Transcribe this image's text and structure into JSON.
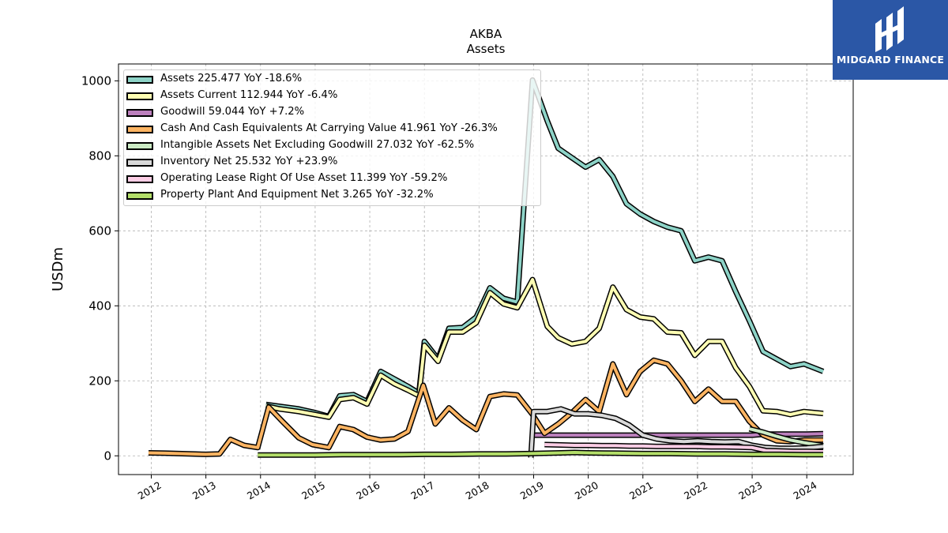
{
  "brand": {
    "name": "MIDGARD FINANCE"
  },
  "chart_data": {
    "type": "line",
    "title": "AKBA",
    "subtitle": "Assets",
    "ylabel": "USDm",
    "xlabel": "",
    "xlim": [
      2011.4,
      2024.85
    ],
    "ylim": [
      -50,
      1045
    ],
    "yticks": [
      0,
      200,
      400,
      600,
      800,
      1000
    ],
    "xticks": [
      "2012",
      "2013",
      "2014",
      "2015",
      "2016",
      "2017",
      "2018",
      "2019",
      "2020",
      "2021",
      "2022",
      "2023",
      "2024"
    ],
    "grid": true,
    "legend_position": "upper-left",
    "series": [
      {
        "name": "Assets",
        "legend": "Assets  225.477 YoY -18.6%",
        "color": "#8dd3c7",
        "points": [
          [
            2014.1,
            137
          ],
          [
            2014.35,
            132
          ],
          [
            2014.7,
            125
          ],
          [
            2015.0,
            115
          ],
          [
            2015.25,
            105
          ],
          [
            2015.45,
            160
          ],
          [
            2015.7,
            163
          ],
          [
            2015.95,
            145
          ],
          [
            2016.2,
            225
          ],
          [
            2016.45,
            205
          ],
          [
            2016.7,
            185
          ],
          [
            2016.9,
            167
          ],
          [
            2017.0,
            305
          ],
          [
            2017.25,
            258
          ],
          [
            2017.45,
            340
          ],
          [
            2017.7,
            342
          ],
          [
            2017.95,
            370
          ],
          [
            2018.2,
            448
          ],
          [
            2018.45,
            420
          ],
          [
            2018.7,
            410
          ],
          [
            2018.98,
            1002
          ],
          [
            2019.25,
            893
          ],
          [
            2019.45,
            820
          ],
          [
            2019.7,
            795
          ],
          [
            2019.95,
            770
          ],
          [
            2020.2,
            790
          ],
          [
            2020.45,
            745
          ],
          [
            2020.7,
            672
          ],
          [
            2020.95,
            645
          ],
          [
            2021.2,
            625
          ],
          [
            2021.45,
            610
          ],
          [
            2021.7,
            600
          ],
          [
            2021.95,
            520
          ],
          [
            2022.2,
            530
          ],
          [
            2022.45,
            520
          ],
          [
            2022.7,
            438
          ],
          [
            2022.95,
            360
          ],
          [
            2023.2,
            278
          ],
          [
            2023.45,
            258
          ],
          [
            2023.7,
            238
          ],
          [
            2023.95,
            245
          ],
          [
            2024.3,
            225
          ]
        ]
      },
      {
        "name": "Assets Current",
        "legend": "Assets Current  112.944 YoY -6.4%",
        "color": "#ffffb3",
        "points": [
          [
            2014.1,
            133
          ],
          [
            2014.35,
            125
          ],
          [
            2014.7,
            118
          ],
          [
            2015.0,
            110
          ],
          [
            2015.25,
            103
          ],
          [
            2015.45,
            150
          ],
          [
            2015.7,
            155
          ],
          [
            2015.95,
            138
          ],
          [
            2016.2,
            215
          ],
          [
            2016.45,
            192
          ],
          [
            2016.7,
            175
          ],
          [
            2016.9,
            160
          ],
          [
            2017.0,
            295
          ],
          [
            2017.25,
            252
          ],
          [
            2017.45,
            330
          ],
          [
            2017.7,
            330
          ],
          [
            2017.95,
            355
          ],
          [
            2018.2,
            435
          ],
          [
            2018.45,
            405
          ],
          [
            2018.7,
            395
          ],
          [
            2018.98,
            470
          ],
          [
            2019.25,
            345
          ],
          [
            2019.45,
            315
          ],
          [
            2019.7,
            298
          ],
          [
            2019.95,
            305
          ],
          [
            2020.2,
            340
          ],
          [
            2020.45,
            450
          ],
          [
            2020.7,
            390
          ],
          [
            2020.95,
            370
          ],
          [
            2021.2,
            365
          ],
          [
            2021.45,
            330
          ],
          [
            2021.7,
            328
          ],
          [
            2021.95,
            268
          ],
          [
            2022.2,
            305
          ],
          [
            2022.45,
            305
          ],
          [
            2022.7,
            235
          ],
          [
            2022.95,
            185
          ],
          [
            2023.2,
            120
          ],
          [
            2023.45,
            118
          ],
          [
            2023.7,
            110
          ],
          [
            2023.95,
            118
          ],
          [
            2024.3,
            113
          ]
        ]
      },
      {
        "name": "Goodwill",
        "legend": "Goodwill  59.044 YoY +7.2%",
        "color": "#bc80bd",
        "points": [
          [
            2018.95,
            55
          ],
          [
            2019.25,
            55
          ],
          [
            2019.5,
            55
          ],
          [
            2019.75,
            55
          ],
          [
            2020.0,
            55
          ],
          [
            2020.5,
            55
          ],
          [
            2021.0,
            55
          ],
          [
            2021.5,
            55
          ],
          [
            2022.0,
            55
          ],
          [
            2022.5,
            55
          ],
          [
            2023.0,
            55
          ],
          [
            2023.25,
            58
          ],
          [
            2023.5,
            58
          ],
          [
            2023.75,
            58
          ],
          [
            2024.0,
            58
          ],
          [
            2024.3,
            59
          ]
        ]
      },
      {
        "name": "Cash And Cash Equivalents At Carrying Value",
        "legend": "Cash And Cash Equivalents At Carrying Value  41.961 YoY -26.3%",
        "color": "#fdb462",
        "points": [
          [
            2011.95,
            8
          ],
          [
            2012.25,
            7
          ],
          [
            2012.5,
            6
          ],
          [
            2012.75,
            5
          ],
          [
            2013.0,
            4
          ],
          [
            2013.25,
            5
          ],
          [
            2013.45,
            44
          ],
          [
            2013.7,
            28
          ],
          [
            2013.95,
            22
          ],
          [
            2014.15,
            130
          ],
          [
            2014.4,
            92
          ],
          [
            2014.7,
            48
          ],
          [
            2014.95,
            30
          ],
          [
            2015.25,
            22
          ],
          [
            2015.45,
            78
          ],
          [
            2015.7,
            70
          ],
          [
            2015.95,
            50
          ],
          [
            2016.2,
            42
          ],
          [
            2016.45,
            45
          ],
          [
            2016.7,
            65
          ],
          [
            2016.98,
            188
          ],
          [
            2017.2,
            85
          ],
          [
            2017.45,
            128
          ],
          [
            2017.7,
            95
          ],
          [
            2017.95,
            70
          ],
          [
            2018.2,
            158
          ],
          [
            2018.45,
            165
          ],
          [
            2018.7,
            162
          ],
          [
            2018.98,
            110
          ],
          [
            2019.2,
            60
          ],
          [
            2019.45,
            85
          ],
          [
            2019.7,
            115
          ],
          [
            2019.95,
            150
          ],
          [
            2020.2,
            118
          ],
          [
            2020.45,
            245
          ],
          [
            2020.7,
            163
          ],
          [
            2020.95,
            225
          ],
          [
            2021.2,
            255
          ],
          [
            2021.45,
            245
          ],
          [
            2021.7,
            200
          ],
          [
            2021.95,
            145
          ],
          [
            2022.2,
            178
          ],
          [
            2022.45,
            145
          ],
          [
            2022.7,
            145
          ],
          [
            2022.95,
            92
          ],
          [
            2023.2,
            55
          ],
          [
            2023.45,
            40
          ],
          [
            2023.7,
            38
          ],
          [
            2023.95,
            42
          ],
          [
            2024.3,
            42
          ]
        ]
      },
      {
        "name": "Intangible Assets Net Excluding Goodwill",
        "legend": "Intangible Assets Net Excluding Goodwill  27.032 YoY -62.5%",
        "color": "#ccebc5",
        "points": [
          [
            2022.95,
            72
          ],
          [
            2023.2,
            63
          ],
          [
            2023.45,
            52
          ],
          [
            2023.7,
            42
          ],
          [
            2023.95,
            35
          ],
          [
            2024.3,
            27
          ]
        ]
      },
      {
        "name": "Inventory Net",
        "legend": "Inventory Net  25.532 YoY +23.9%",
        "color": "#d9d9d9",
        "points": [
          [
            2018.95,
            -5
          ],
          [
            2019.0,
            118
          ],
          [
            2019.25,
            118
          ],
          [
            2019.5,
            125
          ],
          [
            2019.75,
            112
          ],
          [
            2020.0,
            112
          ],
          [
            2020.25,
            108
          ],
          [
            2020.5,
            100
          ],
          [
            2020.75,
            82
          ],
          [
            2021.0,
            55
          ],
          [
            2021.25,
            45
          ],
          [
            2021.5,
            40
          ],
          [
            2021.75,
            38
          ],
          [
            2022.0,
            40
          ],
          [
            2022.25,
            38
          ],
          [
            2022.5,
            37
          ],
          [
            2022.75,
            38
          ],
          [
            2023.0,
            28
          ],
          [
            2023.25,
            22
          ],
          [
            2023.5,
            20
          ],
          [
            2023.75,
            20
          ],
          [
            2024.0,
            21
          ],
          [
            2024.3,
            25
          ]
        ]
      },
      {
        "name": "Operating Lease Right Of Use Asset",
        "legend": "Operating Lease Right Of Use Asset  11.399 YoY -59.2%",
        "color": "#fccde5",
        "points": [
          [
            2019.2,
            30
          ],
          [
            2019.5,
            29
          ],
          [
            2019.75,
            28
          ],
          [
            2020.0,
            28
          ],
          [
            2020.25,
            27
          ],
          [
            2020.5,
            27
          ],
          [
            2020.75,
            26
          ],
          [
            2021.0,
            26
          ],
          [
            2021.25,
            25
          ],
          [
            2021.5,
            25
          ],
          [
            2021.75,
            25
          ],
          [
            2022.0,
            25
          ],
          [
            2022.25,
            24
          ],
          [
            2022.5,
            24
          ],
          [
            2022.75,
            23
          ],
          [
            2023.0,
            22
          ],
          [
            2023.25,
            14
          ],
          [
            2023.5,
            13
          ],
          [
            2023.75,
            12
          ],
          [
            2024.0,
            12
          ],
          [
            2024.3,
            11
          ]
        ]
      },
      {
        "name": "Property Plant And Equipment Net",
        "legend": "Property Plant And Equipment Net  3.265 YoY -32.2%",
        "color": "#b3de69",
        "points": [
          [
            2013.95,
            2
          ],
          [
            2014.5,
            2
          ],
          [
            2015.0,
            2
          ],
          [
            2015.5,
            3
          ],
          [
            2016.0,
            3
          ],
          [
            2016.5,
            3
          ],
          [
            2017.0,
            4
          ],
          [
            2017.5,
            4
          ],
          [
            2018.0,
            5
          ],
          [
            2018.5,
            5
          ],
          [
            2018.95,
            6
          ],
          [
            2019.5,
            8
          ],
          [
            2019.75,
            9
          ],
          [
            2020.0,
            8
          ],
          [
            2020.5,
            7
          ],
          [
            2021.0,
            6
          ],
          [
            2021.5,
            6
          ],
          [
            2022.0,
            5
          ],
          [
            2022.5,
            5
          ],
          [
            2023.0,
            4
          ],
          [
            2023.5,
            4
          ],
          [
            2024.0,
            3
          ],
          [
            2024.3,
            3
          ]
        ]
      }
    ]
  }
}
